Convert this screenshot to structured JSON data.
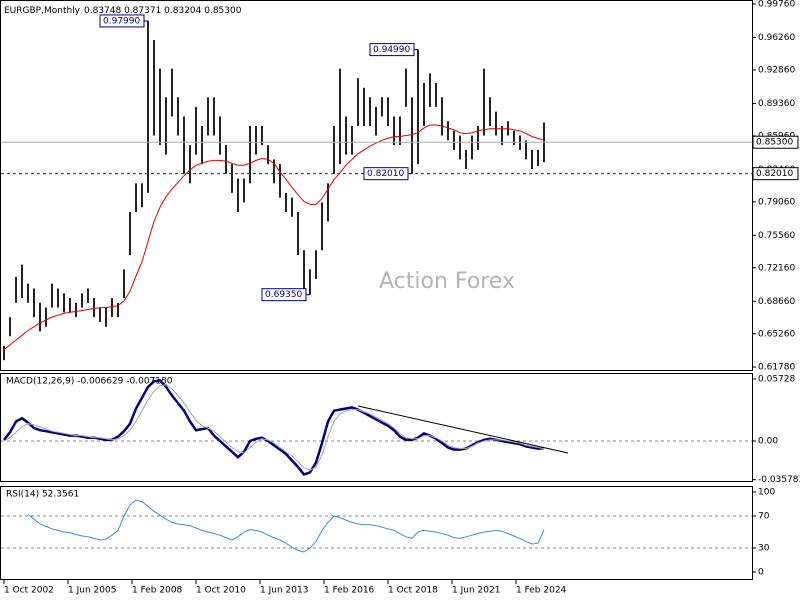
{
  "chart_data": [
    {
      "type": "hilo",
      "title": "EURGBP,Monthly",
      "subtitle": "0.83748 0.87371 0.83204 0.85300",
      "watermark": "Action Forex",
      "color": "#222222",
      "x": [
        "2002-10-01",
        "2003-01-01",
        "2003-04-01",
        "2003-07-01",
        "2003-10-01",
        "2004-01-01",
        "2004-04-01",
        "2004-07-01",
        "2004-10-01",
        "2005-01-01",
        "2005-04-01",
        "2005-07-01",
        "2005-10-01",
        "2006-01-01",
        "2006-04-01",
        "2006-07-01",
        "2006-10-01",
        "2007-01-01",
        "2007-04-01",
        "2007-07-01",
        "2007-10-01",
        "2008-01-01",
        "2008-04-01",
        "2008-07-01",
        "2008-10-01",
        "2009-01-01",
        "2009-04-01",
        "2009-07-01",
        "2009-10-01",
        "2010-01-01",
        "2010-04-01",
        "2010-07-01",
        "2010-10-01",
        "2011-01-01",
        "2011-04-01",
        "2011-07-01",
        "2011-10-01",
        "2012-01-01",
        "2012-04-01",
        "2012-07-01",
        "2012-10-01",
        "2013-01-01",
        "2013-04-01",
        "2013-07-01",
        "2013-10-01",
        "2014-01-01",
        "2014-04-01",
        "2014-07-01",
        "2014-10-01",
        "2015-01-01",
        "2015-04-01",
        "2015-07-01",
        "2015-10-01",
        "2016-01-01",
        "2016-04-01",
        "2016-07-01",
        "2016-10-01",
        "2017-01-01",
        "2017-04-01",
        "2017-07-01",
        "2017-10-01",
        "2018-01-01",
        "2018-04-01",
        "2018-07-01",
        "2018-10-01",
        "2019-01-01",
        "2019-04-01",
        "2019-07-01",
        "2019-10-01",
        "2020-01-01",
        "2020-04-01",
        "2020-07-01",
        "2020-10-01",
        "2021-01-01",
        "2021-04-01",
        "2021-07-01",
        "2021-10-01",
        "2022-01-01",
        "2022-04-01",
        "2022-07-01",
        "2022-10-01",
        "2023-01-01",
        "2023-04-01",
        "2023-07-01",
        "2023-10-01",
        "2024-01-01",
        "2024-04-01",
        "2024-07-01",
        "2024-10-01",
        "2025-01-01",
        "2025-04-01"
      ],
      "high": [
        0.64,
        0.67,
        0.712,
        0.725,
        0.705,
        0.7,
        0.685,
        0.68,
        0.705,
        0.7,
        0.695,
        0.69,
        0.685,
        0.695,
        0.7,
        0.69,
        0.68,
        0.68,
        0.69,
        0.685,
        0.72,
        0.78,
        0.81,
        0.81,
        0.9799,
        0.96,
        0.93,
        0.9,
        0.93,
        0.9,
        0.88,
        0.85,
        0.89,
        0.87,
        0.9,
        0.9,
        0.88,
        0.85,
        0.83,
        0.815,
        0.815,
        0.87,
        0.87,
        0.87,
        0.85,
        0.835,
        0.83,
        0.8,
        0.795,
        0.78,
        0.74,
        0.72,
        0.74,
        0.79,
        0.81,
        0.87,
        0.93,
        0.88,
        0.87,
        0.92,
        0.91,
        0.9,
        0.89,
        0.9,
        0.9,
        0.88,
        0.88,
        0.93,
        0.9,
        0.9499,
        0.915,
        0.925,
        0.915,
        0.9,
        0.875,
        0.865,
        0.86,
        0.845,
        0.86,
        0.87,
        0.93,
        0.9,
        0.885,
        0.87,
        0.875,
        0.865,
        0.86,
        0.855,
        0.845,
        0.845,
        0.87371
      ],
      "low": [
        0.625,
        0.65,
        0.685,
        0.69,
        0.685,
        0.67,
        0.655,
        0.66,
        0.68,
        0.68,
        0.675,
        0.675,
        0.67,
        0.68,
        0.685,
        0.67,
        0.665,
        0.66,
        0.67,
        0.67,
        0.69,
        0.735,
        0.78,
        0.785,
        0.8,
        0.86,
        0.85,
        0.84,
        0.88,
        0.86,
        0.82,
        0.81,
        0.84,
        0.83,
        0.86,
        0.86,
        0.84,
        0.82,
        0.8,
        0.78,
        0.79,
        0.81,
        0.84,
        0.85,
        0.83,
        0.81,
        0.795,
        0.78,
        0.775,
        0.735,
        0.7,
        0.6935,
        0.71,
        0.74,
        0.77,
        0.82,
        0.83,
        0.84,
        0.84,
        0.87,
        0.87,
        0.87,
        0.86,
        0.88,
        0.87,
        0.85,
        0.85,
        0.89,
        0.8201,
        0.83,
        0.87,
        0.89,
        0.89,
        0.86,
        0.855,
        0.845,
        0.835,
        0.825,
        0.835,
        0.845,
        0.86,
        0.87,
        0.86,
        0.85,
        0.86,
        0.85,
        0.845,
        0.835,
        0.825,
        0.828,
        0.83204
      ],
      "series": [
        {
          "color": "#e00000",
          "values": [
            0.636,
            0.641,
            0.646,
            0.651,
            0.656,
            0.66,
            0.664,
            0.667,
            0.67,
            0.672,
            0.674,
            0.675,
            0.676,
            0.677,
            0.678,
            0.679,
            0.68,
            0.68,
            0.681,
            0.682,
            0.687,
            0.697,
            0.713,
            0.728,
            0.749,
            0.77,
            0.785,
            0.796,
            0.804,
            0.811,
            0.818,
            0.824,
            0.829,
            0.831,
            0.833,
            0.834,
            0.834,
            0.833,
            0.831,
            0.829,
            0.829,
            0.831,
            0.834,
            0.836,
            0.835,
            0.831,
            0.822,
            0.814,
            0.806,
            0.798,
            0.791,
            0.788,
            0.788,
            0.794,
            0.804,
            0.814,
            0.821,
            0.829,
            0.835,
            0.841,
            0.845,
            0.849,
            0.852,
            0.855,
            0.857,
            0.859,
            0.859,
            0.86,
            0.861,
            0.863,
            0.868,
            0.871,
            0.871,
            0.87,
            0.868,
            0.866,
            0.863,
            0.862,
            0.863,
            0.865,
            0.866,
            0.867,
            0.867,
            0.867,
            0.867,
            0.866,
            0.865,
            0.862,
            0.859,
            0.857,
            0.855
          ]
        }
      ],
      "ylim": [
        0.6147,
        1.0018
      ],
      "yticks": [
        {
          "value": 0.9976,
          "label": "0.99760"
        },
        {
          "value": 0.9626,
          "label": "0.96260"
        },
        {
          "value": 0.9286,
          "label": "0.92860"
        },
        {
          "value": 0.8936,
          "label": "0.89360"
        },
        {
          "value": 0.8596,
          "label": "0.85960"
        },
        {
          "value": 0.8246,
          "label": "0.82460"
        },
        {
          "value": 0.7906,
          "label": "0.79060"
        },
        {
          "value": 0.7556,
          "label": "0.75560"
        },
        {
          "value": 0.7216,
          "label": "0.72160"
        },
        {
          "value": 0.6866,
          "label": "0.68660"
        },
        {
          "value": 0.6526,
          "label": "0.65260"
        },
        {
          "value": 0.6178,
          "label": "0.61780"
        }
      ],
      "xticks": [
        {
          "value": "2002-10-01",
          "label": "1 Oct 2002"
        },
        {
          "value": "2005-06-01",
          "label": "1 Jun 2005"
        },
        {
          "value": "2008-02-01",
          "label": "1 Feb 2008"
        },
        {
          "value": "2010-10-01",
          "label": "1 Oct 2010"
        },
        {
          "value": "2013-06-01",
          "label": "1 Jun 2013"
        },
        {
          "value": "2016-02-01",
          "label": "1 Feb 2016"
        },
        {
          "value": "2018-10-01",
          "label": "1 Oct 2018"
        },
        {
          "value": "2021-06-01",
          "label": "1 Jun 2021"
        },
        {
          "value": "2024-02-01",
          "label": "1 Feb 2024"
        }
      ],
      "price_lines": [
        {
          "value": 0.853,
          "label": "0.85300",
          "style": "solid"
        },
        {
          "value": 0.8201,
          "label": "0.82010",
          "style": "dashed"
        }
      ],
      "annotations": [
        {
          "value": 0.9799,
          "label": "0.97990"
        },
        {
          "value": 0.9499,
          "label": "0.94990"
        },
        {
          "value": 0.8201,
          "label": "0.82010"
        },
        {
          "value": 0.6935,
          "label": "0.69350"
        }
      ]
    },
    {
      "type": "line",
      "title": "MACD(12,26,9) -0.006629 -0.007180",
      "series": [
        {
          "color": "#000080",
          "width": 2.5,
          "values": [
            0.001,
            0.008,
            0.018,
            0.021,
            0.017,
            0.012,
            0.01,
            0.009,
            0.008,
            0.007,
            0.006,
            0.005,
            0.005,
            0.004,
            0.003,
            0.003,
            0.002,
            0.001,
            0.001,
            0.004,
            0.009,
            0.016,
            0.03,
            0.04,
            0.05,
            0.055,
            0.056,
            0.05,
            0.042,
            0.035,
            0.028,
            0.018,
            0.01,
            0.011,
            0.012,
            0.005,
            0,
            -0.005,
            -0.01,
            -0.015,
            -0.01,
            0,
            0.002,
            0.003,
            0,
            -0.004,
            -0.008,
            -0.012,
            -0.018,
            -0.024,
            -0.031,
            -0.029,
            -0.02,
            -0.002,
            0.018,
            0.028,
            0.029,
            0.03,
            0.031,
            0.029,
            0.026,
            0.023,
            0.02,
            0.017,
            0.014,
            0.01,
            0.004,
            0.001,
            0.001,
            0.003,
            0.007,
            0.005,
            0.002,
            -0.002,
            -0.006,
            -0.008,
            -0.008,
            -0.007,
            -0.004,
            -0.001,
            0.001,
            0.002,
            0.001,
            0,
            -0.001,
            -0.002,
            -0.003,
            -0.005,
            -0.006,
            -0.007,
            -0.006629
          ]
        },
        {
          "color": "#a8a8a8",
          "width": 1,
          "values": [
            0,
            0.003,
            0.008,
            0.013,
            0.016,
            0.015,
            0.013,
            0.011,
            0.009,
            0.008,
            0.007,
            0.006,
            0.005,
            0.005,
            0.004,
            0.003,
            0.003,
            0.002,
            0.001,
            0.002,
            0.005,
            0.01,
            0.018,
            0.028,
            0.038,
            0.046,
            0.051,
            0.052,
            0.048,
            0.042,
            0.035,
            0.027,
            0.019,
            0.014,
            0.012,
            0.009,
            0.004,
            -0.001,
            -0.006,
            -0.01,
            -0.011,
            -0.006,
            -0.001,
            0.002,
            0.001,
            -0.002,
            -0.006,
            -0.01,
            -0.014,
            -0.019,
            -0.025,
            -0.027,
            -0.024,
            -0.013,
            0.004,
            0.018,
            0.025,
            0.028,
            0.029,
            0.029,
            0.027,
            0.025,
            0.022,
            0.019,
            0.016,
            0.012,
            0.007,
            0.003,
            0.002,
            0.002,
            0.005,
            0.005,
            0.003,
            0,
            -0.004,
            -0.006,
            -0.007,
            -0.007,
            -0.005,
            -0.002,
            0,
            0.001,
            0.001,
            0.001,
            0,
            -0.001,
            -0.002,
            -0.004,
            -0.005,
            -0.006,
            -0.00718
          ]
        }
      ],
      "ylim": [
        -0.0379,
        0.0628
      ],
      "yticks": [
        0.05728,
        {
          "value": 0,
          "label": "0.00"
        },
        -0.035783
      ],
      "levels": [
        0
      ]
    },
    {
      "type": "line",
      "title": "RSI(14) 52.3561",
      "series": [
        {
          "color": "#3c8fd8",
          "width": 1,
          "values": [
            null,
            null,
            null,
            null,
            72,
            66,
            60,
            57,
            54,
            52,
            50,
            49,
            47,
            45,
            44,
            42,
            40,
            41,
            46,
            52,
            70,
            84,
            90,
            88,
            82,
            76,
            71,
            66,
            62,
            60,
            59,
            58,
            55,
            52,
            50,
            48,
            46,
            43,
            40,
            44,
            50,
            53,
            52,
            50,
            46,
            43,
            40,
            36,
            31,
            27,
            25,
            30,
            38,
            52,
            62,
            70,
            68,
            65,
            62,
            60,
            59,
            59,
            58,
            56,
            54,
            52,
            48,
            44,
            42,
            50,
            52,
            51,
            50,
            48,
            46,
            43,
            42,
            44,
            46,
            48,
            50,
            51,
            52,
            51,
            48,
            45,
            42,
            38,
            35,
            36,
            52.3561
          ]
        }
      ],
      "ylim": [
        -10,
        107.5
      ],
      "yticks": [
        100,
        70,
        30,
        0
      ],
      "levels": [
        70,
        30
      ]
    }
  ]
}
